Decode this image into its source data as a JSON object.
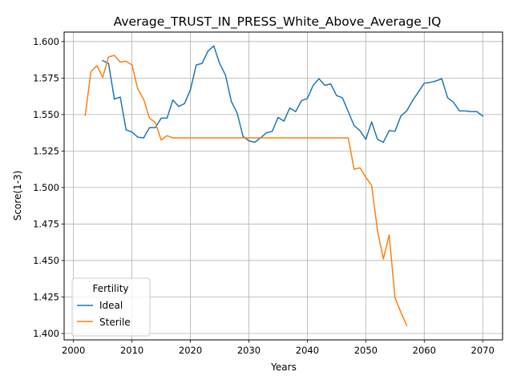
{
  "chart_data": {
    "type": "line",
    "title": "Average_TRUST_IN_PRESS_White_Above_Average_IQ",
    "xlabel": "Years",
    "ylabel": "Score(1-3)",
    "xlim": [
      1998.4,
      2073.4
    ],
    "ylim": [
      1.3956,
      1.6065
    ],
    "x_ticks": [
      2000,
      2010,
      2020,
      2030,
      2040,
      2050,
      2060,
      2070
    ],
    "y_ticks": [
      1.4,
      1.425,
      1.45,
      1.475,
      1.5,
      1.525,
      1.55,
      1.575,
      1.6
    ],
    "grid": true,
    "legend": {
      "title": "Fertility",
      "placement": "lower-left"
    },
    "series": [
      {
        "name": "Ideal",
        "color": "#1f77b4",
        "x": [
          2005,
          2006,
          2007,
          2008,
          2009,
          2010,
          2011,
          2012,
          2013,
          2014,
          2015,
          2016,
          2017,
          2018,
          2019,
          2020,
          2021,
          2022,
          2023,
          2024,
          2025,
          2026,
          2027,
          2028,
          2029,
          2030,
          2031,
          2032,
          2033,
          2034,
          2035,
          2036,
          2037,
          2038,
          2039,
          2040,
          2041,
          2042,
          2043,
          2044,
          2045,
          2046,
          2047,
          2048,
          2049,
          2050,
          2051,
          2052,
          2053,
          2054,
          2055,
          2056,
          2057,
          2058,
          2059,
          2060,
          2061,
          2062,
          2063,
          2064,
          2065,
          2066,
          2067,
          2068,
          2069,
          2070
        ],
        "y": [
          1.587,
          1.585,
          1.5605,
          1.562,
          1.5395,
          1.538,
          1.5345,
          1.534,
          1.541,
          1.541,
          1.5475,
          1.5475,
          1.56,
          1.5555,
          1.5575,
          1.567,
          1.584,
          1.585,
          1.5935,
          1.597,
          1.585,
          1.577,
          1.559,
          1.551,
          1.535,
          1.532,
          1.531,
          1.534,
          1.5375,
          1.5385,
          1.548,
          1.5455,
          1.5545,
          1.552,
          1.5595,
          1.561,
          1.57,
          1.5745,
          1.57,
          1.571,
          1.563,
          1.5615,
          1.552,
          1.5425,
          1.539,
          1.533,
          1.545,
          1.533,
          1.531,
          1.539,
          1.5385,
          1.549,
          1.5525,
          1.5595,
          1.5655,
          1.5715,
          1.572,
          1.573,
          1.5745,
          1.5615,
          1.5585,
          1.5525,
          1.5525,
          1.552,
          1.552,
          1.549
        ]
      },
      {
        "name": "Sterile",
        "color": "#ff7f0e",
        "x": [
          2002,
          2003,
          2004,
          2005,
          2006,
          2007,
          2008,
          2009,
          2010,
          2011,
          2012,
          2013,
          2014,
          2015,
          2016,
          2017,
          2018,
          2019,
          2020,
          2021,
          2022,
          2023,
          2024,
          2025,
          2026,
          2027,
          2028,
          2029,
          2030,
          2031,
          2032,
          2033,
          2034,
          2035,
          2036,
          2037,
          2038,
          2039,
          2040,
          2041,
          2042,
          2043,
          2044,
          2045,
          2046,
          2047,
          2048,
          2049,
          2050,
          2051,
          2052,
          2053,
          2054,
          2055,
          2056,
          2057
        ],
        "y": [
          1.5495,
          1.5795,
          1.5835,
          1.5755,
          1.5895,
          1.5905,
          1.586,
          1.5865,
          1.584,
          1.5675,
          1.5605,
          1.5475,
          1.5445,
          1.5325,
          1.5355,
          1.534,
          1.534,
          1.534,
          1.534,
          1.534,
          1.534,
          1.534,
          1.534,
          1.534,
          1.534,
          1.534,
          1.534,
          1.534,
          1.534,
          1.534,
          1.534,
          1.534,
          1.534,
          1.534,
          1.534,
          1.534,
          1.534,
          1.534,
          1.534,
          1.534,
          1.534,
          1.534,
          1.534,
          1.534,
          1.534,
          1.534,
          1.5125,
          1.5135,
          1.507,
          1.5015,
          1.4705,
          1.451,
          1.4675,
          1.4245,
          1.4145,
          1.4055
        ]
      }
    ]
  }
}
